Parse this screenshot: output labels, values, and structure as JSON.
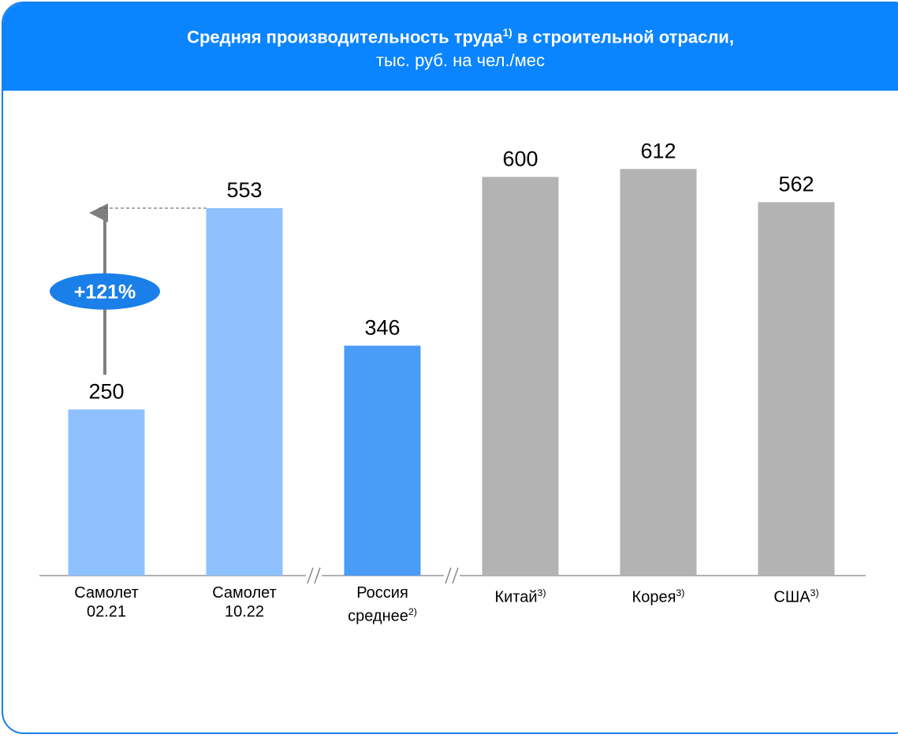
{
  "chart_data": {
    "type": "bar",
    "title": "Средняя производительность труда",
    "title_note": "1)",
    "title_rest": "в строительной отрасли,",
    "subtitle": "тыс. руб. на чел./мес",
    "categories": [
      "Самолет 02.21",
      "Самолет 10.22",
      "Россия среднее",
      "Китай",
      "Корея",
      "США"
    ],
    "footnotes": [
      null,
      null,
      "2)",
      "3)",
      "3)",
      "3)"
    ],
    "values": [
      250,
      553,
      346,
      600,
      612,
      562
    ],
    "colors": [
      "#8fc1ff",
      "#8fc1ff",
      "#4a9cf7",
      "#b3b3b3",
      "#b3b3b3",
      "#b3b3b3"
    ],
    "annotation": "+121%"
  }
}
